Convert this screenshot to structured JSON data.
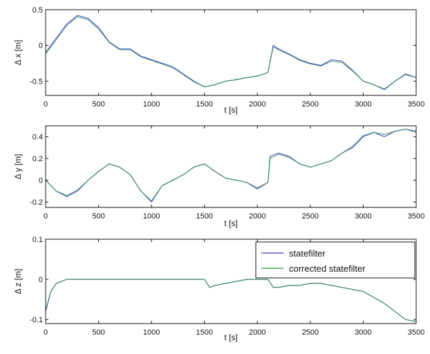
{
  "colors": {
    "statefilter": "#3b3bd6",
    "corrected_statefilter": "#2f8f4a",
    "axes": "#111111",
    "background": "#ffffff"
  },
  "chart_data": [
    {
      "type": "line",
      "id": "dx",
      "xlabel": "t [s]",
      "ylabel": "Δ x [m]",
      "xlim": [
        0,
        3500
      ],
      "ylim": [
        -0.7,
        0.5
      ],
      "xticks": [
        "0",
        "500",
        "1000",
        "1500",
        "2000",
        "2500",
        "3000",
        "3500"
      ],
      "yticks": [
        "-0.5",
        "0",
        "0.5"
      ],
      "ytick_values": [
        -0.5,
        0,
        0.5
      ],
      "grid": false,
      "legend": null,
      "series": [
        {
          "name": "statefilter",
          "x": [
            0,
            100,
            200,
            300,
            400,
            500,
            600,
            700,
            800,
            900,
            1000,
            1100,
            1200,
            1300,
            1400,
            1500,
            1600,
            1700,
            1800,
            1900,
            2000,
            2100,
            2150,
            2200,
            2300,
            2400,
            2500,
            2600,
            2700,
            2800,
            2900,
            3000,
            3100,
            3200,
            3300,
            3400,
            3500
          ],
          "y": [
            -0.1,
            0.1,
            0.3,
            0.42,
            0.38,
            0.25,
            0.05,
            -0.05,
            -0.05,
            -0.15,
            -0.2,
            -0.25,
            -0.3,
            -0.4,
            -0.5,
            -0.58,
            -0.55,
            -0.5,
            -0.48,
            -0.45,
            -0.43,
            -0.38,
            0.0,
            -0.05,
            -0.12,
            -0.2,
            -0.25,
            -0.28,
            -0.2,
            -0.22,
            -0.35,
            -0.5,
            -0.55,
            -0.62,
            -0.5,
            -0.4,
            -0.45
          ]
        },
        {
          "name": "corrected statefilter",
          "x": [
            0,
            100,
            200,
            300,
            400,
            500,
            600,
            700,
            800,
            900,
            1000,
            1100,
            1200,
            1300,
            1400,
            1500,
            1600,
            1700,
            1800,
            1900,
            2000,
            2100,
            2150,
            2200,
            2300,
            2400,
            2500,
            2600,
            2700,
            2800,
            2900,
            3000,
            3100,
            3200,
            3300,
            3400,
            3500
          ],
          "y": [
            -0.12,
            0.08,
            0.28,
            0.4,
            0.36,
            0.23,
            0.04,
            -0.06,
            -0.06,
            -0.16,
            -0.21,
            -0.26,
            -0.31,
            -0.41,
            -0.51,
            -0.58,
            -0.55,
            -0.5,
            -0.48,
            -0.45,
            -0.43,
            -0.38,
            -0.02,
            -0.06,
            -0.13,
            -0.21,
            -0.26,
            -0.29,
            -0.22,
            -0.24,
            -0.36,
            -0.5,
            -0.55,
            -0.61,
            -0.5,
            -0.41,
            -0.45
          ]
        }
      ]
    },
    {
      "type": "line",
      "id": "dy",
      "xlabel": "t [s]",
      "ylabel": "Δ y [m]",
      "xlim": [
        0,
        3500
      ],
      "ylim": [
        -0.25,
        0.5
      ],
      "xticks": [
        "0",
        "500",
        "1000",
        "1500",
        "2000",
        "2500",
        "3000",
        "3500"
      ],
      "yticks": [
        "-0.2",
        "0",
        "0.2",
        "0.4"
      ],
      "ytick_values": [
        -0.2,
        0,
        0.2,
        0.4
      ],
      "grid": false,
      "legend": null,
      "series": [
        {
          "name": "statefilter",
          "x": [
            0,
            100,
            200,
            300,
            400,
            500,
            600,
            700,
            800,
            900,
            1000,
            1100,
            1200,
            1300,
            1400,
            1500,
            1600,
            1700,
            1800,
            1900,
            2000,
            2100,
            2120,
            2200,
            2300,
            2400,
            2500,
            2600,
            2700,
            2800,
            2900,
            3000,
            3100,
            3200,
            3300,
            3400,
            3500
          ],
          "y": [
            0.0,
            -0.1,
            -0.15,
            -0.1,
            0.0,
            0.08,
            0.15,
            0.12,
            0.05,
            -0.1,
            -0.2,
            -0.05,
            0.0,
            0.05,
            0.12,
            0.15,
            0.08,
            0.02,
            0.0,
            -0.02,
            -0.08,
            -0.02,
            0.22,
            0.25,
            0.22,
            0.15,
            0.12,
            0.15,
            0.18,
            0.25,
            0.3,
            0.4,
            0.44,
            0.4,
            0.45,
            0.47,
            0.45
          ]
        },
        {
          "name": "corrected statefilter",
          "x": [
            0,
            100,
            200,
            300,
            400,
            500,
            600,
            700,
            800,
            900,
            1000,
            1100,
            1200,
            1300,
            1400,
            1500,
            1600,
            1700,
            1800,
            1900,
            2000,
            2100,
            2120,
            2200,
            2300,
            2400,
            2500,
            2600,
            2700,
            2800,
            2900,
            3000,
            3100,
            3200,
            3300,
            3400,
            3500
          ],
          "y": [
            0.0,
            -0.1,
            -0.14,
            -0.09,
            0.0,
            0.08,
            0.15,
            0.12,
            0.05,
            -0.1,
            -0.19,
            -0.05,
            0.0,
            0.05,
            0.12,
            0.15,
            0.08,
            0.02,
            0.0,
            -0.02,
            -0.07,
            -0.02,
            0.2,
            0.24,
            0.21,
            0.15,
            0.12,
            0.15,
            0.18,
            0.25,
            0.31,
            0.41,
            0.44,
            0.42,
            0.45,
            0.47,
            0.44
          ]
        }
      ]
    },
    {
      "type": "line",
      "id": "dz",
      "xlabel": "t [s]",
      "ylabel": "Δ z [m]",
      "xlim": [
        0,
        3500
      ],
      "ylim": [
        -0.11,
        0.1
      ],
      "xticks": [
        "0",
        "500",
        "1000",
        "1500",
        "2000",
        "2500",
        "3000",
        "3500"
      ],
      "yticks": [
        "-0.1",
        "0",
        "0.1"
      ],
      "ytick_values": [
        -0.1,
        0,
        0.1
      ],
      "grid": false,
      "legend": "top-right",
      "series": [
        {
          "name": "statefilter",
          "x": [
            0,
            50,
            100,
            200,
            300,
            400,
            500,
            600,
            700,
            800,
            900,
            1000,
            1100,
            1200,
            1300,
            1400,
            1500,
            1550,
            1600,
            1700,
            1800,
            1900,
            2000,
            2100,
            2150,
            2200,
            2300,
            2400,
            2500,
            2600,
            2700,
            2800,
            2900,
            3000,
            3100,
            3200,
            3300,
            3400,
            3500
          ],
          "y": [
            -0.08,
            -0.03,
            -0.01,
            0.0,
            0.0,
            0.0,
            0.0,
            0.0,
            0.0,
            0.0,
            0.0,
            0.0,
            0.0,
            0.0,
            0.0,
            0.0,
            0.0,
            -0.02,
            -0.015,
            -0.01,
            -0.005,
            0.0,
            0.0,
            0.0,
            -0.02,
            -0.02,
            -0.015,
            -0.015,
            -0.01,
            -0.01,
            -0.015,
            -0.02,
            -0.025,
            -0.03,
            -0.045,
            -0.06,
            -0.08,
            -0.1,
            -0.105
          ]
        },
        {
          "name": "corrected statefilter",
          "x": [
            0,
            50,
            100,
            200,
            300,
            400,
            500,
            600,
            700,
            800,
            900,
            1000,
            1100,
            1200,
            1300,
            1400,
            1500,
            1550,
            1600,
            1700,
            1800,
            1900,
            2000,
            2100,
            2150,
            2200,
            2300,
            2400,
            2500,
            2600,
            2700,
            2800,
            2900,
            3000,
            3100,
            3200,
            3300,
            3400,
            3500
          ],
          "y": [
            -0.075,
            -0.03,
            -0.01,
            0.0,
            0.0,
            0.0,
            0.0,
            0.0,
            0.0,
            0.0,
            0.0,
            0.0,
            0.0,
            0.0,
            0.0,
            0.0,
            0.0,
            -0.02,
            -0.015,
            -0.01,
            -0.005,
            0.0,
            0.0,
            0.0,
            -0.02,
            -0.02,
            -0.015,
            -0.015,
            -0.01,
            -0.01,
            -0.015,
            -0.02,
            -0.025,
            -0.03,
            -0.045,
            -0.06,
            -0.08,
            -0.1,
            -0.105
          ]
        }
      ]
    }
  ]
}
